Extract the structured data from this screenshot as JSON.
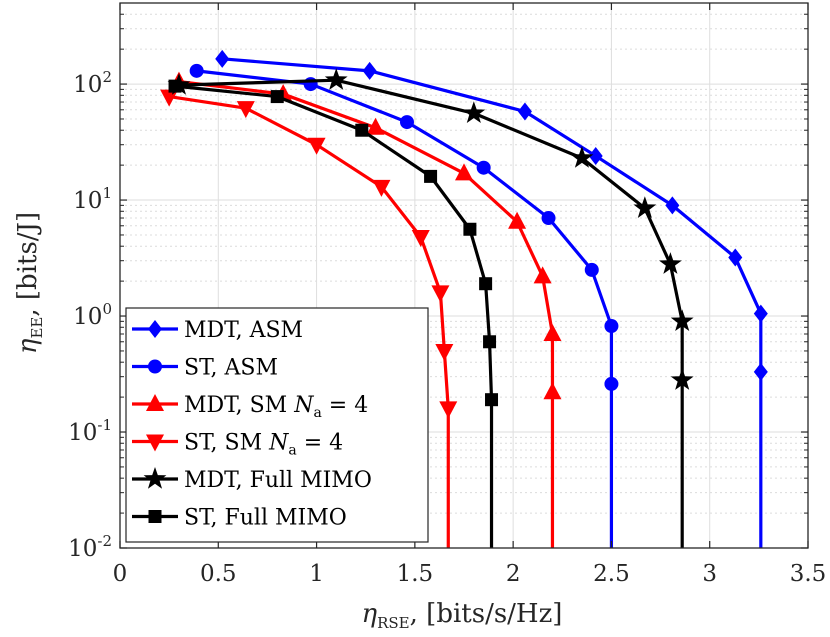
{
  "chart_data": {
    "type": "line",
    "yscale": "log",
    "xlabel": "ηRSE, [bits/s/Hz]",
    "ylabel": "ηEE, [bits/J]",
    "xlabel_parts": {
      "sym": "η",
      "sub": "RSE",
      "unit": ", [bits/s/Hz]"
    },
    "ylabel_parts": {
      "sym": "η",
      "sub": "EE",
      "unit": ", [bits/J]"
    },
    "xlim": [
      0,
      3.5
    ],
    "ylim": [
      0.01,
      500
    ],
    "x_ticks": [
      "0",
      "0.5",
      "1",
      "1.5",
      "2",
      "2.5",
      "3",
      "3.5"
    ],
    "x_tick_values": [
      0,
      0.5,
      1,
      1.5,
      2,
      2.5,
      3,
      3.5
    ],
    "y_ticks": [
      {
        "value": 0.01,
        "base": "10",
        "exp": "-2"
      },
      {
        "value": 0.1,
        "base": "10",
        "exp": "-1"
      },
      {
        "value": 1,
        "base": "10",
        "exp": "0"
      },
      {
        "value": 10,
        "base": "10",
        "exp": "1"
      },
      {
        "value": 100,
        "base": "10",
        "exp": "2"
      }
    ],
    "grid": true,
    "legend_position": "bottom-left",
    "series": [
      {
        "name": "MDT, ASM",
        "legend": {
          "text": "MDT, ASM"
        },
        "color": "#0000ff",
        "marker": "diamond",
        "x": [
          3.26,
          3.26,
          3.13,
          2.81,
          2.42,
          2.06,
          1.27,
          0.52
        ],
        "y": [
          0.33,
          1.05,
          3.2,
          9.0,
          24,
          58,
          130,
          165
        ]
      },
      {
        "name": "ST, ASM",
        "legend": {
          "text": "ST, ASM"
        },
        "color": "#0000ff",
        "marker": "circle",
        "x": [
          2.5,
          2.5,
          2.4,
          2.18,
          1.85,
          1.46,
          0.97,
          0.39
        ],
        "y": [
          0.26,
          0.82,
          2.5,
          7.0,
          19,
          47,
          100,
          130
        ]
      },
      {
        "name": "MDT, SM Na = 4",
        "legend": {
          "text": "MDT, SM ",
          "sym": "N",
          "sub": "a",
          "tail": " = 4"
        },
        "color": "#ff0000",
        "marker": "triangle-up",
        "x": [
          2.2,
          2.2,
          2.15,
          2.02,
          1.75,
          1.3,
          0.83,
          0.3
        ],
        "y": [
          0.22,
          0.7,
          2.2,
          6.5,
          17,
          42,
          82,
          105
        ]
      },
      {
        "name": "ST, SM Na = 4",
        "legend": {
          "text": "ST, SM ",
          "sym": "N",
          "sub": "a",
          "tail": " = 4"
        },
        "color": "#ff0000",
        "marker": "triangle-down",
        "x": [
          1.67,
          1.65,
          1.63,
          1.53,
          1.33,
          1.0,
          0.64,
          0.25
        ],
        "y": [
          0.16,
          0.5,
          1.6,
          4.8,
          13,
          30,
          62,
          78
        ]
      },
      {
        "name": "MDT, Full MIMO",
        "legend": {
          "text": "MDT, Full MIMO"
        },
        "color": "#000000",
        "marker": "star",
        "x": [
          2.86,
          2.86,
          2.8,
          2.67,
          2.35,
          1.8,
          1.1,
          0.3
        ],
        "y": [
          0.28,
          0.9,
          2.8,
          8.5,
          23,
          56,
          108,
          98
        ]
      },
      {
        "name": "ST, Full MIMO",
        "legend": {
          "text": "ST, Full MIMO"
        },
        "color": "#000000",
        "marker": "square",
        "x": [
          1.89,
          1.88,
          1.86,
          1.78,
          1.58,
          1.23,
          0.8,
          0.28
        ],
        "y": [
          0.19,
          0.6,
          1.9,
          5.6,
          16,
          40,
          78,
          96
        ]
      }
    ]
  }
}
